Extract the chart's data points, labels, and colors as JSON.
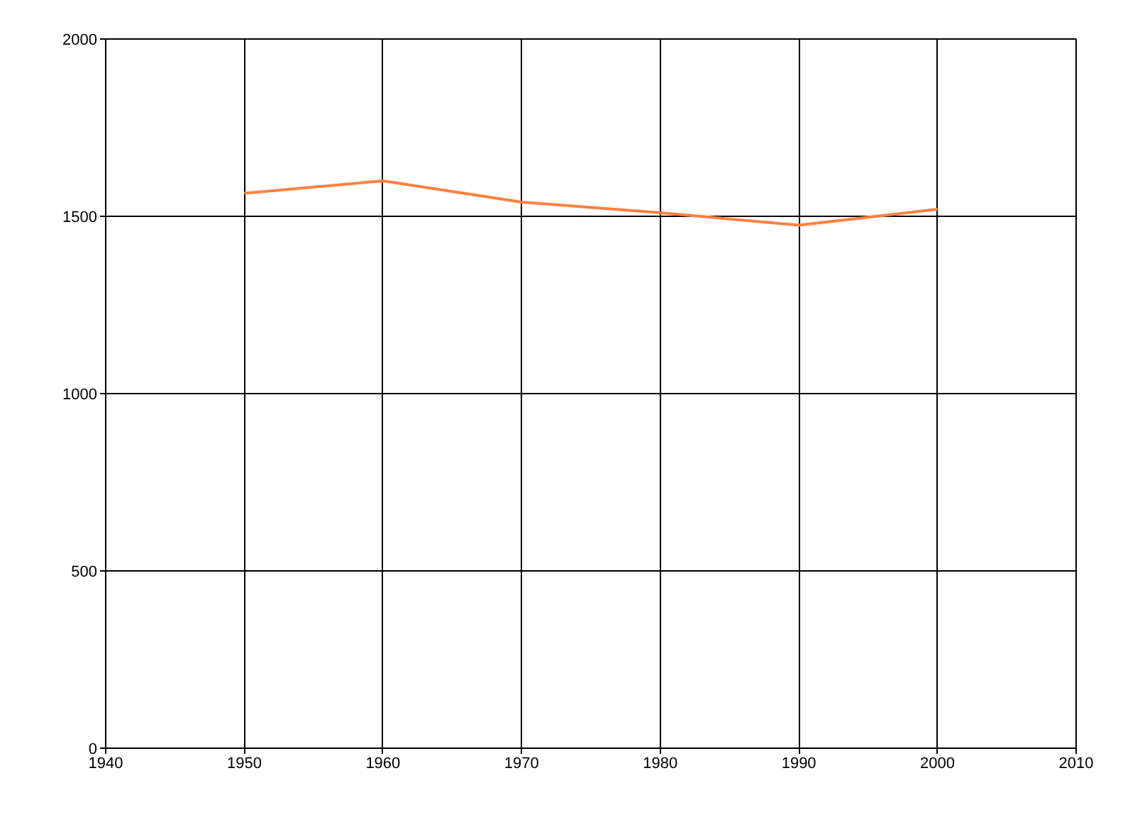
{
  "chart_data": {
    "type": "line",
    "x": [
      1950,
      1960,
      1970,
      1980,
      1990,
      2000
    ],
    "series": [
      {
        "color": "#ff8040",
        "values": [
          1565,
          1600,
          1540,
          1510,
          1475,
          1520
        ]
      }
    ],
    "xlim": [
      1940,
      2010
    ],
    "xticks": [
      1940,
      1950,
      1960,
      1970,
      1980,
      1990,
      2000,
      2010
    ],
    "ylim": [
      0,
      2000
    ],
    "yticks": [
      0,
      500,
      1000,
      1500,
      2000
    ],
    "grid": true,
    "marker": "none",
    "line_style": "solid"
  }
}
